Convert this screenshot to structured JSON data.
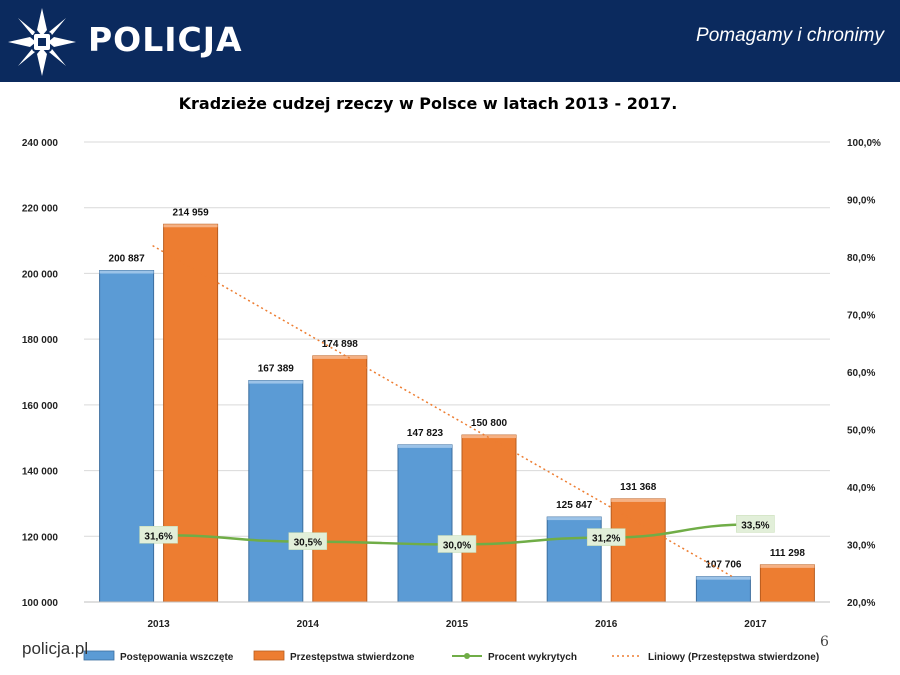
{
  "header": {
    "brand": "POLICJA",
    "slogan": "Pomagamy i chronimy",
    "logo_icon": "police-star-icon",
    "background_color": "#0b2a5e"
  },
  "footer": {
    "site": "policja.pl",
    "page_number": "6"
  },
  "chart_data": {
    "type": "bar",
    "title": "Kradzieże cudzej rzeczy w Polsce w latach 2013 - 2017.",
    "categories": [
      "2013",
      "2014",
      "2015",
      "2016",
      "2017"
    ],
    "ylim": [
      100000,
      240000
    ],
    "yticks": [
      "100 000",
      "120 000",
      "140 000",
      "160 000",
      "180 000",
      "200 000",
      "220 000",
      "240 000"
    ],
    "y2lim": [
      20,
      100
    ],
    "y2ticks": [
      "20,0%",
      "30,0%",
      "40,0%",
      "50,0%",
      "60,0%",
      "70,0%",
      "80,0%",
      "90,0%",
      "100,0%"
    ],
    "legend_position": "bottom",
    "grid": true,
    "series": [
      {
        "name": "Postępowania wszczęte",
        "type": "bar",
        "color": "#5b9bd5",
        "values": [
          200887,
          167389,
          147823,
          125847,
          107706
        ],
        "labels": [
          "200 887",
          "167 389",
          "147 823",
          "125 847",
          "107 706"
        ]
      },
      {
        "name": "Przestępstwa stwierdzone",
        "type": "bar",
        "color": "#ed7d31",
        "values": [
          214959,
          174898,
          150800,
          131368,
          111298
        ],
        "labels": [
          "214 959",
          "174 898",
          "150 800",
          "131 368",
          "111 298"
        ]
      },
      {
        "name": "Procent wykrytych",
        "type": "line",
        "axis": "right",
        "color": "#70ad47",
        "values": [
          31.6,
          30.5,
          30.0,
          31.2,
          33.5
        ],
        "labels": [
          "31,6%",
          "30,5%",
          "30,0%",
          "31,2%",
          "33,5%"
        ]
      },
      {
        "name": "Liniowy (Przestępstwa stwierdzone)",
        "type": "trendline",
        "color": "#ed7d31",
        "values": [
          208451,
          183223,
          157996,
          132768,
          107540
        ]
      }
    ]
  }
}
